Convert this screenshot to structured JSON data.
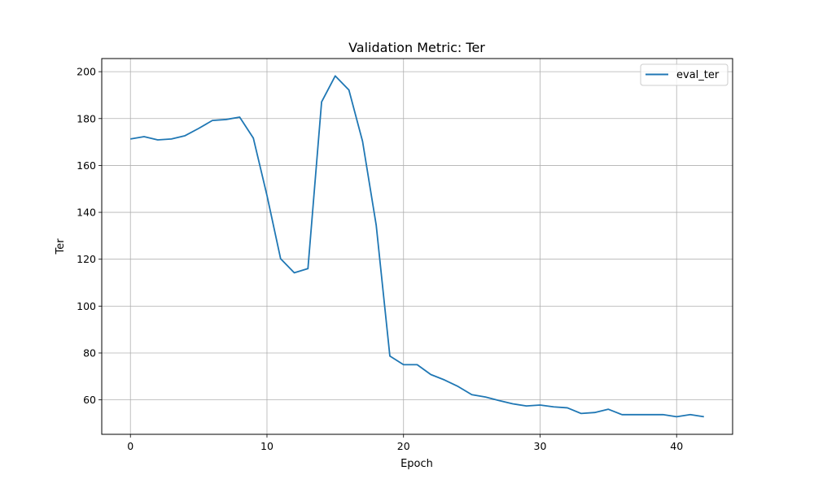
{
  "chart_data": {
    "type": "line",
    "title": "Validation Metric: Ter",
    "xlabel": "Epoch",
    "ylabel": "Ter",
    "xlim": [
      -2.1,
      44.1
    ],
    "ylim": [
      45.3,
      205.6
    ],
    "xticks": [
      0,
      10,
      20,
      30,
      40
    ],
    "yticks": [
      60,
      80,
      100,
      120,
      140,
      160,
      180,
      200
    ],
    "grid": true,
    "legend_position": "top-right",
    "series": [
      {
        "name": "eval_ter",
        "color": "#1f77b4",
        "x": [
          0,
          1,
          2,
          3,
          4,
          5,
          6,
          7,
          8,
          9,
          10,
          11,
          12,
          13,
          14,
          15,
          16,
          17,
          18,
          19,
          20,
          21,
          22,
          23,
          24,
          25,
          26,
          27,
          28,
          29,
          30,
          31,
          32,
          33,
          34,
          35,
          36,
          37,
          38,
          39,
          40,
          41,
          42
        ],
        "y": [
          171.3,
          172.3,
          170.9,
          171.3,
          172.7,
          175.8,
          179.2,
          179.6,
          180.6,
          171.7,
          147.2,
          120.2,
          114.2,
          116.0,
          187.1,
          198.2,
          192.2,
          170.3,
          134.5,
          78.7,
          75.0,
          75.0,
          70.8,
          68.5,
          65.7,
          62.2,
          61.2,
          59.7,
          58.3,
          57.4,
          57.8,
          57.0,
          56.6,
          54.2,
          54.6,
          56.0,
          53.7,
          53.7,
          53.7,
          53.7,
          52.8,
          53.7,
          52.8
        ]
      }
    ]
  }
}
